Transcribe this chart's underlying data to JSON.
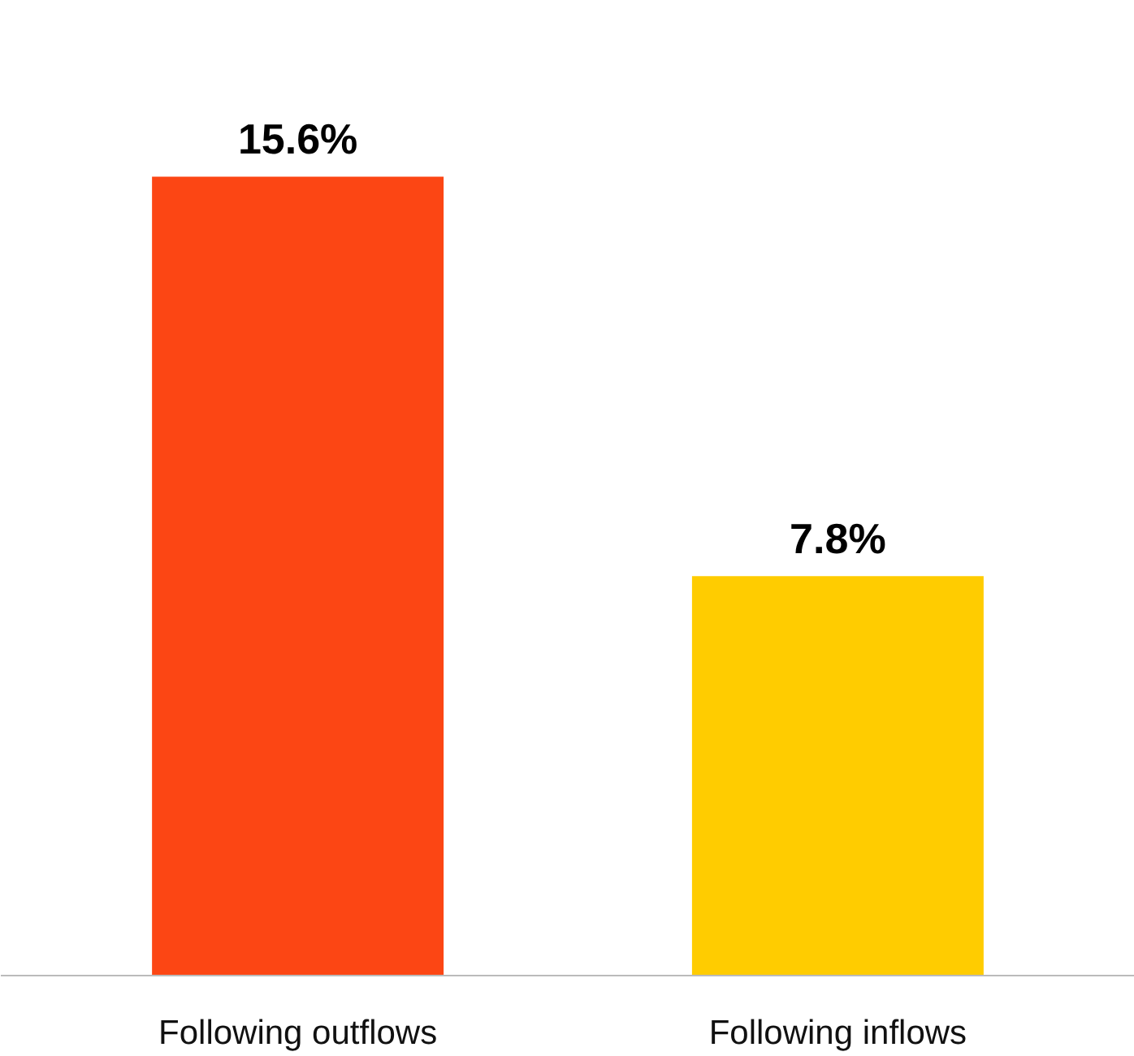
{
  "chart_data": {
    "type": "bar",
    "categories": [
      "Following outflows",
      "Following inflows"
    ],
    "values": [
      15.6,
      7.8
    ],
    "value_labels": [
      "15.6%",
      "7.8%"
    ],
    "colors": [
      "#fc4614",
      "#ffcc00"
    ],
    "grid": false
  }
}
